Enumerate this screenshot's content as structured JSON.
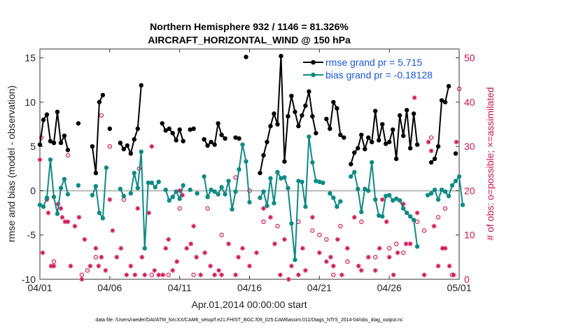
{
  "chart_data": {
    "type": "line",
    "title_line1": "Northern Hemisphere 932 / 1146 = 81.326%",
    "title_line2": "AIRCRAFT_HORIZONTAL_WIND @ 150 hPa",
    "xlabel": "Apr.01,2014 00:00:00 start",
    "ylabel": "rmse and bias (model - observation)",
    "y2label": "# of obs: o=possible; ×=assimilated",
    "footnote": "data file: /Users/raeder/DAI/ATM_forcXX/CAM6_setup/f.e21.FHIST_BGC.f09_025.CAM6assim.011/Diags_NTrS_2014-04/obs_diag_output.nc",
    "xlim": [
      0,
      30
    ],
    "ylim": [
      -10,
      16
    ],
    "y2lim": [
      0,
      52
    ],
    "x_ticks": [
      0,
      5,
      10,
      15,
      20,
      25,
      30
    ],
    "x_tick_labels": [
      "04/01",
      "04/06",
      "04/11",
      "04/16",
      "04/21",
      "04/26",
      "05/01"
    ],
    "y_ticks": [
      -10,
      -5,
      0,
      5,
      10,
      15
    ],
    "y_tick_labels": [
      "-10",
      "-5",
      "0",
      "5",
      "10",
      "15"
    ],
    "y2_ticks": [
      0,
      10,
      20,
      30,
      40,
      50
    ],
    "y2_tick_labels": [
      "0",
      "10",
      "20",
      "30",
      "40",
      "50"
    ],
    "legend_position": "top-right",
    "colors": {
      "rmse": "#000000",
      "bias": "#0f8a84",
      "obs": "#d0185a",
      "zero": "#b8b8b8",
      "legend_text": "#1a55d8"
    },
    "series": [
      {
        "name": "rmse grand pr = 5.715",
        "points": [
          [
            0.0,
            5.2
          ],
          [
            0.25,
            8.0
          ],
          [
            0.5,
            8.6
          ],
          [
            0.75,
            5.6
          ],
          [
            1.0,
            5.4
          ],
          [
            1.25,
            8.9
          ],
          [
            1.5,
            5.4
          ],
          [
            1.75,
            6.2
          ],
          [
            2.0,
            4.6
          ],
          [
            2.75,
            7.6
          ],
          [
            3.75,
            5.0
          ],
          [
            4.0,
            2.0
          ],
          [
            4.25,
            10.0
          ],
          [
            4.5,
            10.8
          ],
          [
            5.0,
            7.0
          ],
          [
            5.75,
            5.4
          ],
          [
            6.0,
            4.7
          ],
          [
            6.25,
            5.1
          ],
          [
            6.5,
            4.2
          ],
          [
            6.75,
            5.8
          ],
          [
            7.0,
            7.0
          ],
          [
            7.25,
            11.9
          ],
          [
            8.75,
            7.6
          ],
          [
            9.0,
            6.8
          ],
          [
            9.25,
            7.0
          ],
          [
            9.5,
            6.5
          ],
          [
            9.75,
            5.7
          ],
          [
            10.0,
            6.9
          ],
          [
            10.25,
            5.6
          ],
          [
            10.75,
            6.9
          ],
          [
            11.0,
            7.0
          ],
          [
            11.75,
            5.8
          ],
          [
            12.0,
            5.1
          ],
          [
            12.25,
            5.5
          ],
          [
            12.5,
            5.2
          ],
          [
            12.75,
            7.6
          ],
          [
            13.0,
            6.3
          ],
          [
            13.25,
            5.9
          ],
          [
            14.0,
            6.0
          ],
          [
            14.25,
            5.9
          ],
          [
            14.75,
            15.1
          ],
          [
            15.75,
            2.0
          ],
          [
            16.0,
            4.0
          ],
          [
            16.25,
            5.5
          ],
          [
            16.5,
            7.3
          ],
          [
            16.75,
            8.7
          ],
          [
            17.0,
            7.5
          ],
          [
            17.25,
            15.2
          ],
          [
            17.5,
            3.3
          ],
          [
            17.75,
            8.4
          ],
          [
            18.0,
            10.7
          ],
          [
            18.25,
            8.9
          ],
          [
            18.5,
            7.3
          ],
          [
            18.75,
            8.5
          ],
          [
            19.0,
            9.6
          ],
          [
            19.25,
            11.2
          ],
          [
            19.5,
            8.4
          ],
          [
            19.75,
            6.5
          ],
          [
            20.5,
            8.1
          ],
          [
            20.75,
            7.0
          ],
          [
            21.0,
            10.0
          ],
          [
            21.25,
            9.3
          ],
          [
            21.5,
            6.3
          ],
          [
            21.75,
            6.0
          ],
          [
            22.25,
            3.0
          ],
          [
            22.5,
            4.3
          ],
          [
            22.75,
            4.8
          ],
          [
            23.0,
            6.3
          ],
          [
            23.25,
            4.7
          ],
          [
            23.5,
            6.0
          ],
          [
            23.75,
            5.5
          ],
          [
            24.0,
            9.0
          ],
          [
            24.25,
            5.7
          ],
          [
            24.5,
            7.5
          ],
          [
            24.75,
            5.3
          ],
          [
            25.0,
            5.5
          ],
          [
            25.25,
            6.9
          ],
          [
            25.5,
            3.6
          ],
          [
            25.75,
            8.5
          ],
          [
            26.0,
            6.2
          ],
          [
            26.25,
            9.1
          ],
          [
            26.5,
            4.8
          ],
          [
            26.75,
            8.7
          ],
          [
            27.0,
            5.2
          ],
          [
            28.0,
            3.2
          ],
          [
            28.25,
            3.6
          ],
          [
            28.5,
            5.0
          ],
          [
            28.75,
            10.2
          ],
          [
            29.0,
            10.0
          ],
          [
            29.25,
            11.8
          ],
          [
            29.75,
            4.2
          ]
        ]
      },
      {
        "name": "bias grand pr = -0.18128",
        "points": [
          [
            0.0,
            -1.6
          ],
          [
            0.25,
            -1.8
          ],
          [
            0.5,
            -0.8
          ],
          [
            0.75,
            3.5
          ],
          [
            1.0,
            -0.7
          ],
          [
            1.25,
            -2.6
          ],
          [
            1.5,
            0.3
          ],
          [
            1.75,
            1.3
          ],
          [
            2.0,
            -0.4
          ],
          [
            2.75,
            0.6
          ],
          [
            3.75,
            -0.5
          ],
          [
            4.0,
            0.5
          ],
          [
            4.25,
            -2.5
          ],
          [
            4.5,
            -3.1
          ],
          [
            4.75,
            2.6
          ],
          [
            5.75,
            0.2
          ],
          [
            6.0,
            -0.6
          ],
          [
            6.5,
            -0.3
          ],
          [
            6.75,
            2.0
          ],
          [
            7.0,
            0.3
          ],
          [
            7.25,
            4.4
          ],
          [
            7.5,
            -6.5
          ],
          [
            7.75,
            0.9
          ],
          [
            8.0,
            0.9
          ],
          [
            8.25,
            0.4
          ],
          [
            8.5,
            1.0
          ],
          [
            9.0,
            0.1
          ],
          [
            9.25,
            -1.1
          ],
          [
            9.5,
            -0.7
          ],
          [
            9.75,
            -0.1
          ],
          [
            10.0,
            -0.9
          ],
          [
            10.25,
            0.6
          ],
          [
            10.75,
            0.1
          ],
          [
            11.25,
            -0.3
          ],
          [
            11.75,
            1.6
          ],
          [
            12.0,
            -0.7
          ],
          [
            12.25,
            0.1
          ],
          [
            12.5,
            -0.1
          ],
          [
            12.75,
            -0.4
          ],
          [
            13.0,
            0.4
          ],
          [
            13.25,
            -0.4
          ],
          [
            13.5,
            1.1
          ],
          [
            13.75,
            -2.1
          ],
          [
            14.0,
            -0.1
          ],
          [
            14.25,
            2.4
          ],
          [
            14.5,
            5.2
          ],
          [
            14.75,
            3.3
          ],
          [
            15.0,
            -1.3
          ],
          [
            15.75,
            -0.8
          ],
          [
            16.0,
            -0.1
          ],
          [
            16.25,
            -1.7
          ],
          [
            16.5,
            1.4
          ],
          [
            16.75,
            -1.4
          ],
          [
            17.0,
            2.1
          ],
          [
            17.25,
            1.4
          ],
          [
            17.5,
            1.5
          ],
          [
            17.75,
            0.3
          ],
          [
            18.0,
            -3.7
          ],
          [
            18.25,
            -7.8
          ],
          [
            18.5,
            1.1
          ],
          [
            18.75,
            1.0
          ],
          [
            19.0,
            -1.8
          ],
          [
            19.25,
            6.1
          ],
          [
            19.5,
            3.2
          ],
          [
            19.75,
            1.1
          ],
          [
            20.0,
            1.0
          ],
          [
            20.25,
            0.9
          ],
          [
            20.75,
            -0.3
          ],
          [
            21.0,
            -0.8
          ],
          [
            21.25,
            -1.8
          ],
          [
            21.5,
            -1.2
          ],
          [
            22.25,
            1.6
          ],
          [
            22.5,
            2.1
          ],
          [
            22.75,
            0.2
          ],
          [
            23.0,
            -2.4
          ],
          [
            23.25,
            0.2
          ],
          [
            23.5,
            0.0
          ],
          [
            23.75,
            3.2
          ],
          [
            24.0,
            -1.0
          ],
          [
            24.25,
            -2.8
          ],
          [
            24.5,
            -2.9
          ],
          [
            24.75,
            -0.6
          ],
          [
            25.0,
            -0.5
          ],
          [
            25.25,
            -1.1
          ],
          [
            25.5,
            -0.9
          ],
          [
            25.75,
            -1.1
          ],
          [
            26.0,
            -2.0
          ],
          [
            26.25,
            -2.5
          ],
          [
            26.5,
            -2.9
          ],
          [
            26.75,
            -3.3
          ],
          [
            27.0,
            -6.3
          ],
          [
            27.75,
            -0.5
          ],
          [
            28.0,
            -0.3
          ],
          [
            28.25,
            0.1
          ],
          [
            28.5,
            -1.0
          ],
          [
            28.75,
            0.1
          ],
          [
            29.0,
            -0.1
          ],
          [
            29.25,
            -0.6
          ],
          [
            29.5,
            0.6
          ],
          [
            29.75,
            1.1
          ],
          [
            30.0,
            1.6
          ],
          [
            30.25,
            -1.6
          ]
        ]
      }
    ],
    "obs_possible": [
      [
        0.1,
        32
      ],
      [
        1.0,
        4
      ],
      [
        2.0,
        28
      ],
      [
        3.0,
        1
      ],
      [
        3.4,
        2
      ],
      [
        4.0,
        5
      ],
      [
        4.4,
        37
      ],
      [
        5.0,
        30
      ],
      [
        6.0,
        18
      ],
      [
        7.1,
        25
      ],
      [
        8.0,
        1
      ],
      [
        9.2,
        1
      ],
      [
        10.0,
        16
      ],
      [
        11.0,
        1
      ],
      [
        12.0,
        16
      ],
      [
        13.0,
        10
      ],
      [
        14.0,
        23
      ],
      [
        15.0,
        20
      ],
      [
        16.0,
        13
      ],
      [
        17.0,
        12
      ],
      [
        18.5,
        13
      ],
      [
        19.5,
        11
      ],
      [
        20.0,
        10
      ],
      [
        20.5,
        9
      ],
      [
        21.0,
        1
      ],
      [
        21.5,
        12
      ],
      [
        22.0,
        4
      ],
      [
        23.0,
        13
      ],
      [
        24.0,
        5
      ],
      [
        25.0,
        7
      ],
      [
        25.5,
        8
      ],
      [
        26.0,
        6
      ],
      [
        27.0,
        13
      ],
      [
        27.5,
        11
      ],
      [
        28.0,
        32
      ],
      [
        28.5,
        14
      ],
      [
        29.0,
        16
      ],
      [
        29.5,
        1
      ],
      [
        30.0,
        43
      ]
    ],
    "obs_assimilated": [
      [
        0.0,
        27
      ],
      [
        0.2,
        6
      ],
      [
        0.5,
        18
      ],
      [
        0.6,
        15
      ],
      [
        0.8,
        3
      ],
      [
        1.0,
        3
      ],
      [
        1.3,
        17
      ],
      [
        1.5,
        16
      ],
      [
        1.6,
        14
      ],
      [
        1.8,
        13
      ],
      [
        2.0,
        13
      ],
      [
        2.2,
        3
      ],
      [
        2.5,
        12
      ],
      [
        2.8,
        14
      ],
      [
        3.0,
        0
      ],
      [
        3.2,
        9
      ],
      [
        3.6,
        3
      ],
      [
        4.0,
        7
      ],
      [
        4.2,
        3
      ],
      [
        4.4,
        5
      ],
      [
        4.7,
        2
      ],
      [
        5.0,
        18
      ],
      [
        5.2,
        11
      ],
      [
        5.5,
        5
      ],
      [
        5.8,
        7
      ],
      [
        6.2,
        1
      ],
      [
        6.5,
        3
      ],
      [
        6.8,
        1
      ],
      [
        7.0,
        16
      ],
      [
        7.3,
        5
      ],
      [
        7.5,
        1
      ],
      [
        7.8,
        15
      ],
      [
        8.0,
        30
      ],
      [
        8.2,
        2
      ],
      [
        8.5,
        1
      ],
      [
        8.8,
        1
      ],
      [
        9.0,
        7
      ],
      [
        9.2,
        9
      ],
      [
        9.5,
        2
      ],
      [
        9.8,
        4
      ],
      [
        10.0,
        20
      ],
      [
        10.2,
        19
      ],
      [
        10.5,
        7
      ],
      [
        10.8,
        8
      ],
      [
        11.0,
        12
      ],
      [
        11.2,
        5
      ],
      [
        11.5,
        1
      ],
      [
        11.8,
        6
      ],
      [
        12.2,
        3
      ],
      [
        12.5,
        1
      ],
      [
        12.8,
        2
      ],
      [
        13.0,
        1
      ],
      [
        13.5,
        8
      ],
      [
        14.0,
        1
      ],
      [
        14.2,
        5
      ],
      [
        14.5,
        7
      ],
      [
        15.0,
        3
      ],
      [
        15.5,
        6
      ],
      [
        16.0,
        16
      ],
      [
        16.5,
        14
      ],
      [
        16.8,
        8
      ],
      [
        17.2,
        1
      ],
      [
        17.5,
        9
      ],
      [
        17.8,
        0
      ],
      [
        18.0,
        3
      ],
      [
        18.5,
        1
      ],
      [
        18.8,
        7
      ],
      [
        19.0,
        2
      ],
      [
        19.5,
        14
      ],
      [
        20.0,
        6
      ],
      [
        20.5,
        4
      ],
      [
        20.8,
        5
      ],
      [
        21.0,
        3
      ],
      [
        21.3,
        9
      ],
      [
        21.6,
        1
      ],
      [
        22.0,
        7
      ],
      [
        22.5,
        14
      ],
      [
        22.8,
        3
      ],
      [
        23.0,
        2
      ],
      [
        23.5,
        5
      ],
      [
        24.0,
        2
      ],
      [
        24.3,
        7
      ],
      [
        24.5,
        18
      ],
      [
        24.8,
        13
      ],
      [
        25.0,
        5
      ],
      [
        25.3,
        1
      ],
      [
        25.6,
        6
      ],
      [
        26.0,
        17
      ],
      [
        26.2,
        8
      ],
      [
        26.5,
        8
      ],
      [
        26.8,
        41
      ],
      [
        27.0,
        15
      ],
      [
        27.2,
        48
      ],
      [
        27.5,
        1
      ],
      [
        27.8,
        31
      ],
      [
        28.0,
        29
      ],
      [
        28.2,
        12
      ],
      [
        28.5,
        3
      ],
      [
        28.8,
        7
      ],
      [
        29.0,
        7
      ],
      [
        29.3,
        3
      ],
      [
        29.6,
        1
      ],
      [
        29.8,
        31
      ]
    ]
  }
}
